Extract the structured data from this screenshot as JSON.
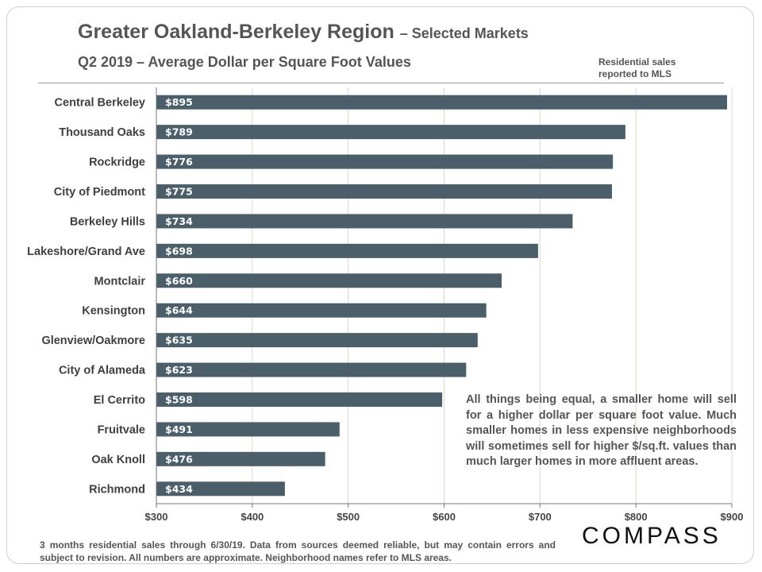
{
  "title": "Greater Oakland-Berkeley Region",
  "title_suffix": "– Selected Markets",
  "subtitle": "Q2 2019 – Average Dollar per Square Foot Values",
  "note": "Residential sales reported to MLS",
  "callout": "All things being equal, a smaller home will sell for a higher dollar per square foot value. Much smaller homes in less expensive neighborhoods will sometimes sell for higher $/sq.ft. values than much larger homes in more affluent areas.",
  "footer": "3 months residential sales through 6/30/19. Data from sources deemed reliable, but may contain errors and subject to revision. All numbers are approximate. Neighborhood names refer to MLS areas.",
  "logo": "COMPASS",
  "colors": {
    "bar": "#4a5f6a",
    "grid": "#d8d8c8",
    "text": "#555555"
  },
  "chart_data": {
    "type": "bar",
    "orientation": "horizontal",
    "title": "Greater Oakland-Berkeley Region – Selected Markets",
    "subtitle": "Q2 2019 – Average Dollar per Square Foot Values",
    "categories": [
      "Central Berkeley",
      "Thousand Oaks",
      "Rockridge",
      "City of Piedmont",
      "Berkeley Hills",
      "Lakeshore/Grand Ave",
      "Montclair",
      "Kensington",
      "Glenview/Oakmore",
      "City of Alameda",
      "El Cerrito",
      "Fruitvale",
      "Oak Knoll",
      "Richmond"
    ],
    "values": [
      895,
      789,
      776,
      775,
      734,
      698,
      660,
      644,
      635,
      623,
      598,
      491,
      476,
      434
    ],
    "data_labels": [
      "$895",
      "$789",
      "$776",
      "$775",
      "$734",
      "$698",
      "$660",
      "$644",
      "$635",
      "$623",
      "$598",
      "$491",
      "$476",
      "$434"
    ],
    "xlim": [
      300,
      900
    ],
    "x_ticks": [
      300,
      400,
      500,
      600,
      700,
      800,
      900
    ],
    "x_tick_labels": [
      "$300",
      "$400",
      "$500",
      "$600",
      "$700",
      "$800",
      "$900"
    ],
    "grid": true,
    "legend": "none"
  }
}
